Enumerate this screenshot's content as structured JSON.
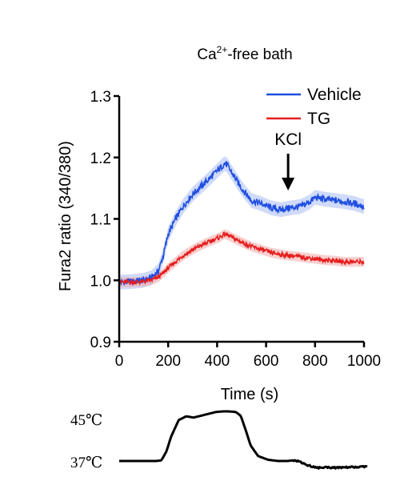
{
  "chart_data": [
    {
      "type": "line",
      "title_main": "Ca",
      "title_sup": "2+",
      "title_rest": "-free bath",
      "xlabel": "Time (s)",
      "ylabel": "Fura2 ratio (340/380)",
      "xlim": [
        0,
        1000
      ],
      "ylim": [
        0.9,
        1.3
      ],
      "xticks": [
        "0",
        "200",
        "400",
        "600",
        "800",
        "1000"
      ],
      "yticks": [
        "0.9",
        "1.0",
        "1.1",
        "1.2",
        "1.3"
      ],
      "legend_position": "top-right",
      "annotation": "KCl",
      "annotation_x": 690,
      "series": [
        {
          "name": "Vehicle",
          "color": "#1f4fe0",
          "band_color": "#a9bbf5",
          "band_width": 0.012,
          "x": [
            0,
            50,
            100,
            130,
            160,
            180,
            200,
            230,
            260,
            300,
            340,
            380,
            410,
            430,
            440,
            460,
            500,
            540,
            580,
            620,
            660,
            700,
            740,
            780,
            800,
            840,
            880,
            920,
            960,
            1000
          ],
          "y": [
            0.997,
            0.998,
            1.0,
            1.004,
            1.015,
            1.04,
            1.075,
            1.1,
            1.12,
            1.14,
            1.155,
            1.17,
            1.182,
            1.19,
            1.188,
            1.175,
            1.15,
            1.13,
            1.125,
            1.118,
            1.115,
            1.118,
            1.12,
            1.128,
            1.135,
            1.132,
            1.13,
            1.128,
            1.125,
            1.12
          ]
        },
        {
          "name": "TG",
          "color": "#e51e1e",
          "band_color": "#f3aaaa",
          "band_width": 0.008,
          "x": [
            0,
            50,
            100,
            130,
            160,
            180,
            200,
            230,
            260,
            300,
            340,
            380,
            410,
            430,
            440,
            460,
            500,
            540,
            580,
            620,
            660,
            700,
            740,
            780,
            800,
            840,
            880,
            920,
            960,
            1000
          ],
          "y": [
            0.997,
            0.997,
            0.998,
            1.0,
            1.005,
            1.012,
            1.02,
            1.03,
            1.04,
            1.05,
            1.058,
            1.065,
            1.07,
            1.075,
            1.074,
            1.07,
            1.062,
            1.055,
            1.05,
            1.045,
            1.042,
            1.04,
            1.038,
            1.036,
            1.035,
            1.033,
            1.032,
            1.03,
            1.03,
            1.03
          ]
        }
      ]
    },
    {
      "type": "line",
      "labels": {
        "high": "45℃",
        "low": "37℃"
      },
      "series": [
        {
          "name": "",
          "color": "#000000",
          "x": [
            0,
            100,
            150,
            170,
            190,
            210,
            240,
            270,
            300,
            330,
            360,
            390,
            420,
            440,
            470,
            490,
            510,
            530,
            560,
            600,
            640,
            680,
            700,
            720,
            740,
            760,
            800,
            840,
            880,
            920,
            960,
            1000
          ],
          "y": [
            37,
            37,
            37,
            37.1,
            38.5,
            41,
            43.6,
            44.2,
            44.0,
            44.3,
            44.6,
            44.9,
            45.0,
            45.0,
            44.9,
            44.3,
            42,
            39.5,
            37.8,
            37.2,
            37.0,
            37.0,
            37.1,
            37.0,
            36.7,
            36.3,
            35.9,
            36.0,
            35.9,
            36.0,
            36.0,
            36.1
          ]
        }
      ]
    }
  ]
}
